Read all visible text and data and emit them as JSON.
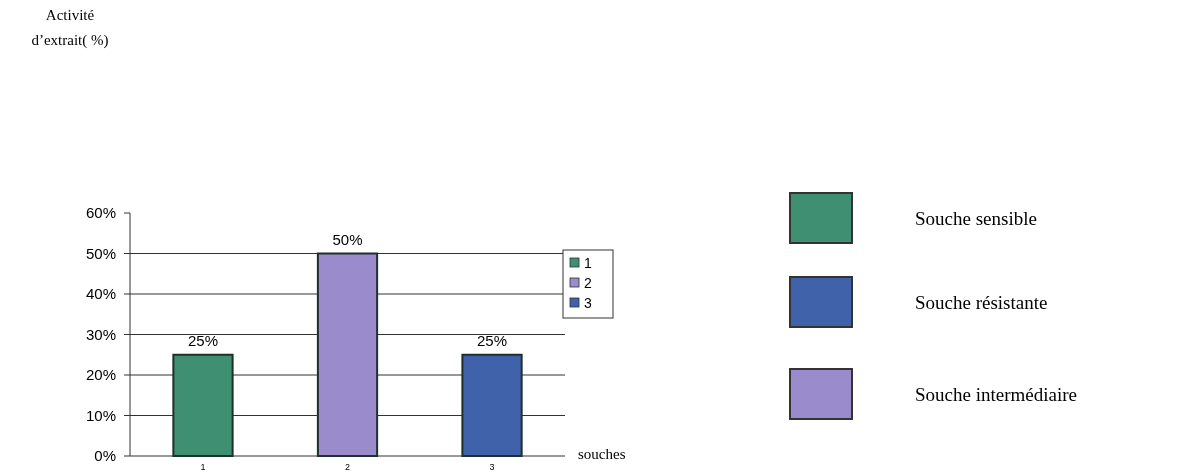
{
  "chart_data": {
    "type": "bar",
    "xlabel": "souches",
    "stacked": true,
    "categories": [
      "1",
      "2",
      "3"
    ],
    "series": [
      {
        "name": "1",
        "color": "#3f8f73",
        "values": [
          25,
          null,
          null
        ]
      },
      {
        "name": "2",
        "color": "#9a8ccc",
        "values": [
          null,
          50,
          null
        ]
      },
      {
        "name": "3",
        "color": "#3f62ab",
        "values": [
          null,
          null,
          25
        ]
      }
    ],
    "totals": [
      "25%",
      "50%",
      "25%"
    ],
    "ylim": [
      0,
      60
    ],
    "yticks": [
      {
        "value": 0,
        "label": "0%"
      },
      {
        "value": 10,
        "label": "10%"
      },
      {
        "value": 20,
        "label": "20%"
      },
      {
        "value": 30,
        "label": "30%"
      },
      {
        "value": 40,
        "label": "40%"
      },
      {
        "value": 50,
        "label": "50%"
      },
      {
        "value": 60,
        "label": "60%"
      }
    ],
    "grid": "y",
    "legend": "right",
    "annotations": [
      "Activité d’extrait( %)",
      "Souche sensible",
      "Souche résistante",
      "Souche intermédiaire"
    ]
  }
}
